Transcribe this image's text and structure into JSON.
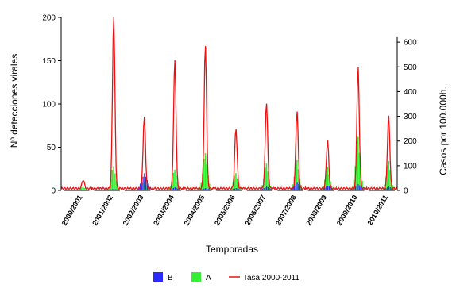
{
  "chart_data": {
    "type": "bar",
    "xlabel": "Temporadas",
    "ylabel_left": "Nº detecciones virales",
    "ylabel_right": "Casos por 100.000h.",
    "ylim_left": [
      0,
      200
    ],
    "ylim_right": [
      0,
      700
    ],
    "left_ticks": [
      "0",
      "50",
      "100",
      "150",
      "200"
    ],
    "right_ticks": [
      "0",
      "100",
      "200",
      "300",
      "400",
      "500",
      "600"
    ],
    "categories": [
      "2000/2001",
      "2001/2002",
      "2002/2003",
      "2003/2004",
      "2004/2005",
      "2005/2006",
      "2006/2007",
      "2007/2008",
      "2008/2009",
      "2009/2010",
      "2010/2011"
    ],
    "series": [
      {
        "name": "B",
        "type": "bar",
        "axis": "left",
        "color": "#2b2bff",
        "peaks": [
          1,
          2,
          22,
          4,
          3,
          3,
          5,
          10,
          6,
          8,
          5
        ]
      },
      {
        "name": "A",
        "type": "bar",
        "axis": "left",
        "color": "#33ee33",
        "peaks": [
          4,
          28,
          10,
          24,
          43,
          20,
          31,
          35,
          27,
          62,
          34
        ]
      },
      {
        "name": "Tasa 2000-2011",
        "type": "line",
        "axis": "right",
        "color": "#ee1111",
        "peaks": [
          35,
          700,
          290,
          520,
          580,
          245,
          350,
          315,
          195,
          490,
          295
        ]
      }
    ],
    "legend": {
      "placement": "bottom",
      "labels": [
        "B",
        "A",
        "Tasa 2000-2011"
      ],
      "colors": [
        "#2b2bff",
        "#33ee33",
        "#ee1111"
      ]
    }
  }
}
